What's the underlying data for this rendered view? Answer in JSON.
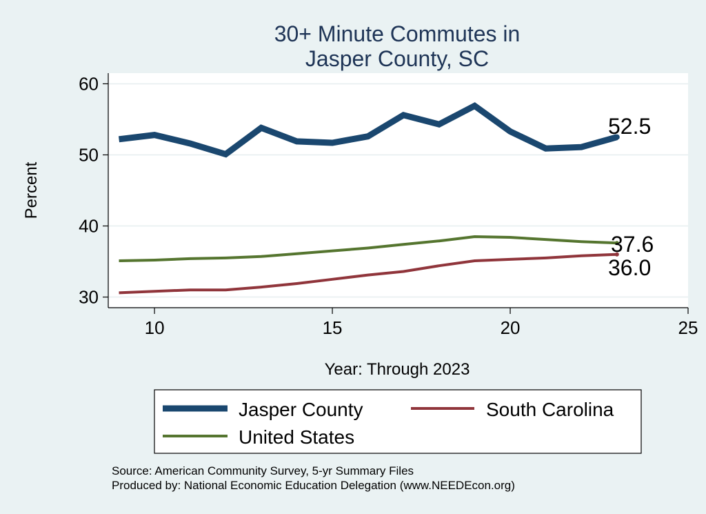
{
  "chart_data": {
    "type": "line",
    "title": [
      "30+ Minute Commutes in",
      "Jasper County, SC"
    ],
    "xlabel": "Year: Through 2023",
    "ylabel": "Percent",
    "xlim": [
      8.7,
      25
    ],
    "ylim": [
      28.5,
      61.5
    ],
    "xticks": [
      10,
      15,
      20,
      25
    ],
    "yticks": [
      30,
      40,
      50,
      60
    ],
    "grid": true,
    "x": [
      9,
      10,
      11,
      12,
      13,
      14,
      15,
      16,
      17,
      18,
      19,
      20,
      21,
      22,
      23
    ],
    "series": [
      {
        "name": "Jasper County",
        "color": "#1a476f",
        "values": [
          52.2,
          52.8,
          51.6,
          50.1,
          53.8,
          51.9,
          51.7,
          52.6,
          55.6,
          54.3,
          56.9,
          53.3,
          50.9,
          51.1,
          52.5
        ],
        "end_label": "52.5"
      },
      {
        "name": "South Carolina",
        "color": "#90353b",
        "values": [
          30.6,
          30.8,
          31.0,
          31.0,
          31.4,
          31.9,
          32.5,
          33.1,
          33.6,
          34.4,
          35.1,
          35.3,
          35.5,
          35.8,
          36.0
        ],
        "end_label": "36.0"
      },
      {
        "name": "United States",
        "color": "#55752f",
        "values": [
          35.1,
          35.2,
          35.4,
          35.5,
          35.7,
          36.1,
          36.5,
          36.9,
          37.4,
          37.9,
          38.5,
          38.4,
          38.1,
          37.8,
          37.6
        ],
        "end_label": "37.6"
      }
    ],
    "legend": [
      "Jasper County",
      "South Carolina",
      "United States"
    ],
    "legend_position": "bottom",
    "annotations": [
      "Source: American Community Survey, 5-yr Summary Files",
      "Produced by: National Economic Education Delegation (www.NEEDEcon.org)"
    ]
  }
}
